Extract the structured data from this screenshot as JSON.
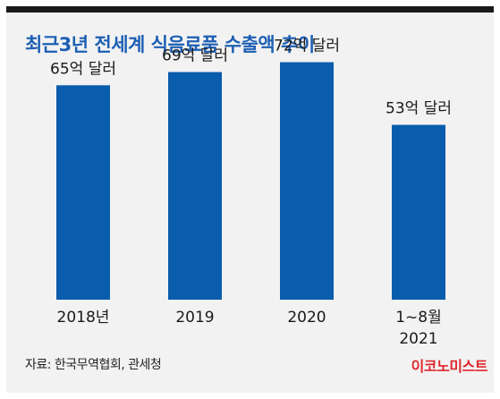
{
  "title": "최근3년 전세계 식음료품 수출액 추이",
  "source": "자료: 한국무역협회, 관세청",
  "brand": "이코노미스트",
  "colors": {
    "bar": "#0a5cad",
    "title": "#1d5fb3",
    "brand": "#e0262d",
    "frame": "#1a1a1a"
  },
  "chart_data": {
    "type": "bar",
    "title": "최근3년 전세계 식음료품 수출액 추이",
    "xlabel": "",
    "ylabel": "",
    "unit": "억 달러",
    "categories": [
      "2018년",
      "2019",
      "2020",
      "1~8월\n2021"
    ],
    "values": [
      65,
      69,
      72,
      53
    ],
    "value_labels": [
      "65억 달러",
      "69억 달러",
      "72억 달러",
      "53억 달러"
    ],
    "ylim": [
      0,
      80
    ],
    "grid": false,
    "legend": "none"
  }
}
